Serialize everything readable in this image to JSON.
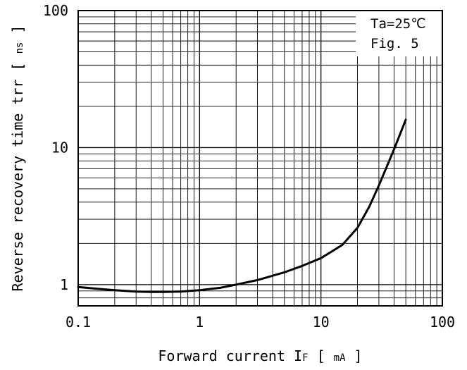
{
  "chart_data": {
    "type": "line",
    "x_scale": "log",
    "y_scale": "log",
    "xlim": [
      0.1,
      100
    ],
    "ylim": [
      0.7,
      100
    ],
    "x_ticks": [
      "0.1",
      "1",
      "10",
      "100"
    ],
    "y_ticks": [
      "1",
      "10",
      "100"
    ],
    "xlabel": {
      "main": "Forward current I",
      "subscript": "F",
      "unit": "mA"
    },
    "ylabel": {
      "main": "Reverse recovery time trr",
      "unit": "ns"
    },
    "grid": true,
    "annotations": {
      "line1": "Ta=25℃",
      "line2": "Fig. 5"
    },
    "series": [
      {
        "x": [
          0.1,
          0.15,
          0.2,
          0.3,
          0.4,
          0.5,
          0.7,
          1,
          1.5,
          2,
          3,
          5,
          7,
          10,
          15,
          20,
          25,
          30,
          40,
          50
        ],
        "y": [
          0.96,
          0.93,
          0.91,
          0.89,
          0.885,
          0.885,
          0.89,
          0.91,
          0.95,
          1.0,
          1.08,
          1.23,
          1.37,
          1.56,
          1.95,
          2.6,
          3.7,
          5.3,
          9.7,
          16
        ]
      }
    ]
  }
}
